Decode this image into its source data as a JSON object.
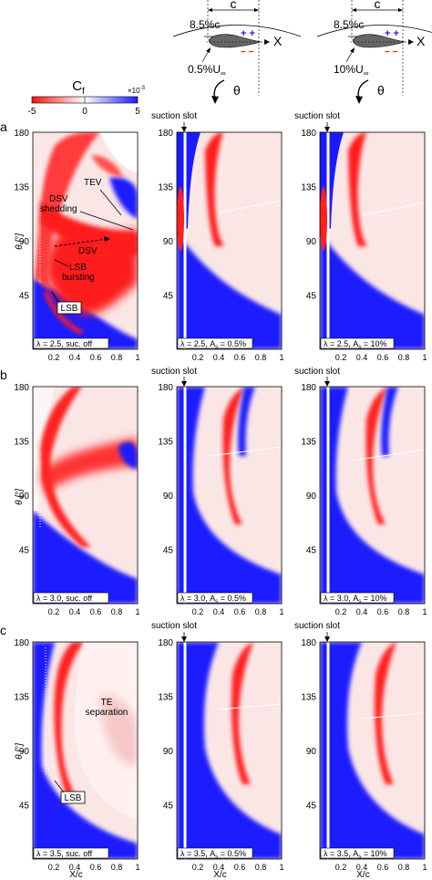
{
  "colorbar": {
    "title": "C",
    "title_sub": "f",
    "scale_label": "×10",
    "scale_exp": "-3",
    "ticks": [
      "-5",
      "0",
      "5"
    ],
    "colors": {
      "negative": "#ff1010",
      "zero": "#ffffff",
      "positive": "#1a1aff"
    }
  },
  "schematics": [
    {
      "chord_label": "c",
      "offset_label": "8.5%c",
      "axis_label": "X",
      "suction_label": "0.5%U",
      "suction_sub": "∞",
      "angle_label": "θ",
      "plus_marks": "+ +",
      "minus_marks": "− −"
    },
    {
      "chord_label": "c",
      "offset_label": "8.5%c",
      "axis_label": "X",
      "suction_label": "10%U",
      "suction_sub": "∞",
      "angle_label": "θ",
      "plus_marks": "+ +",
      "minus_marks": "− −"
    }
  ],
  "rows": [
    {
      "letter": "a",
      "panels": [
        {
          "caption": "λ = 2.5, suc. off",
          "suction": false
        },
        {
          "caption_pre": "λ = 2.5, A",
          "caption_sub": "s",
          "caption_post": " = 0.5%",
          "suction": true,
          "slot_label": "suction slot"
        },
        {
          "caption_pre": "λ = 2.5, A",
          "caption_sub": "s",
          "caption_post": " = 10%",
          "suction": true,
          "slot_label": "suction slot"
        }
      ]
    },
    {
      "letter": "b",
      "panels": [
        {
          "caption": "λ = 3.0, suc. off",
          "suction": false
        },
        {
          "caption_pre": "λ = 3.0, A",
          "caption_sub": "s",
          "caption_post": " = 0.5%",
          "suction": true,
          "slot_label": "suction slot"
        },
        {
          "caption_pre": "λ = 3.0, A",
          "caption_sub": "s",
          "caption_post": " = 10%",
          "suction": true,
          "slot_label": "suction slot"
        }
      ]
    },
    {
      "letter": "c",
      "panels": [
        {
          "caption": "λ = 3.5, suc. off",
          "suction": false
        },
        {
          "caption_pre": "λ = 3.5, A",
          "caption_sub": "s",
          "caption_post": " = 0.5%",
          "suction": true,
          "slot_label": "suction slot"
        },
        {
          "caption_pre": "λ = 3.5, A",
          "caption_sub": "s",
          "caption_post": " = 10%",
          "suction": true,
          "slot_label": "suction slot"
        }
      ]
    }
  ],
  "axes": {
    "ylabel": "θ [°]",
    "xlabel": "X/c",
    "yticks": [
      "180",
      "135",
      "90",
      "45"
    ],
    "xticks": [
      "0.2",
      "0.4",
      "0.6",
      "0.8",
      "1"
    ]
  },
  "annotations": {
    "tev": "TEV",
    "dsv_shedding_1": "DSV",
    "dsv_shedding_2": "shedding",
    "dsv": "DSV",
    "lsb_bursting_1": "LSB",
    "lsb_bursting_2": "bursting",
    "lsb": "LSB",
    "te_sep_1": "TE",
    "te_sep_2": "separation"
  }
}
